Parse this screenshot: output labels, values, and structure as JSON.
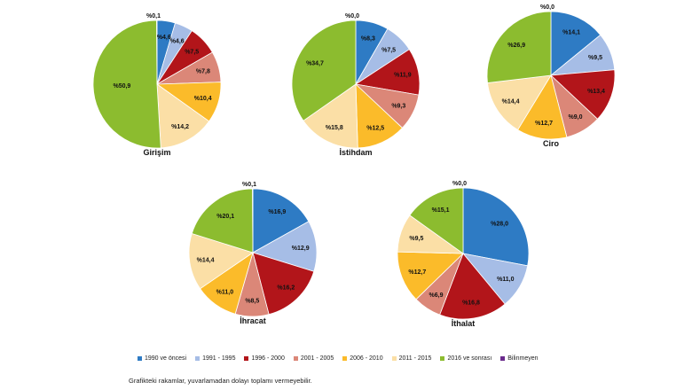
{
  "colors": {
    "1990 ve öncesi": "#2E7BC4",
    "1991 - 1995": "#A6BDE6",
    "1996 - 2000": "#B2151A",
    "2001 - 2005": "#DB8778",
    "2006 - 2010": "#FBBB2A",
    "2011 - 2015": "#FBDFA6",
    "2016 ve sonrası": "#8CBC2F",
    "Bilinmeyen": "#6A2A8C"
  },
  "chart_data": [
    {
      "type": "pie",
      "title": "Girişim",
      "categories": [
        "1990 ve öncesi",
        "1991 - 1995",
        "1996 - 2000",
        "2001 - 2005",
        "2006 - 2010",
        "2011 - 2015",
        "2016 ve sonrası",
        "Bilinmeyen"
      ],
      "values": [
        4.6,
        4.6,
        7.5,
        7.8,
        10.4,
        14.2,
        50.9,
        0.1
      ],
      "labels": [
        "%4,6",
        "%4,6",
        "%7,5",
        "%7,8",
        "%10,4",
        "%14,2",
        "%50,9",
        "%0,1"
      ]
    },
    {
      "type": "pie",
      "title": "İstihdam",
      "categories": [
        "1990 ve öncesi",
        "1991 - 1995",
        "1996 - 2000",
        "2001 - 2005",
        "2006 - 2010",
        "2011 - 2015",
        "2016 ve sonrası",
        "Bilinmeyen"
      ],
      "values": [
        8.3,
        7.5,
        11.9,
        9.3,
        12.5,
        15.8,
        34.7,
        0.0
      ],
      "labels": [
        "%8,3",
        "%7,5",
        "%11,9",
        "%9,3",
        "%12,5",
        "%15,8",
        "%34,7",
        "%0,0"
      ]
    },
    {
      "type": "pie",
      "title": "Ciro",
      "categories": [
        "1990 ve öncesi",
        "1991 - 1995",
        "1996 - 2000",
        "2001 - 2005",
        "2006 - 2010",
        "2011 - 2015",
        "2016 ve sonrası",
        "Bilinmeyen"
      ],
      "values": [
        14.1,
        9.5,
        13.4,
        9.0,
        12.7,
        14.4,
        26.9,
        0.0
      ],
      "labels": [
        "%14,1",
        "%9,5",
        "%13,4",
        "%9,0",
        "%12,7",
        "%14,4",
        "%26,9",
        "%0,0"
      ]
    },
    {
      "type": "pie",
      "title": "İhracat",
      "categories": [
        "1990 ve öncesi",
        "1991 - 1995",
        "1996 - 2000",
        "2001 - 2005",
        "2006 - 2010",
        "2011 - 2015",
        "2016 ve sonrası",
        "Bilinmeyen"
      ],
      "values": [
        16.9,
        12.9,
        16.2,
        8.5,
        11.0,
        14.4,
        20.1,
        0.1
      ],
      "labels": [
        "%16,9",
        "%12,9",
        "%16,2",
        "%8,5",
        "%11,0",
        "%14,4",
        "%20,1",
        "%0,1"
      ]
    },
    {
      "type": "pie",
      "title": "İthalat",
      "categories": [
        "1990 ve öncesi",
        "1991 - 1995",
        "1996 - 2000",
        "2001 - 2005",
        "2006 - 2010",
        "2011 - 2015",
        "2016 ve sonrası",
        "Bilinmeyen"
      ],
      "values": [
        28.0,
        11.0,
        16.8,
        6.9,
        12.7,
        9.5,
        15.1,
        0.0
      ],
      "labels": [
        "%28,0",
        "%11,0",
        "%16,8",
        "%6,9",
        "%12,7",
        "%9,5",
        "%15,1",
        "%0,0"
      ]
    }
  ],
  "legend": {
    "items": [
      {
        "label": "1990 ve öncesi",
        "color": "#2E7BC4"
      },
      {
        "label": "1991 - 1995",
        "color": "#A6BDE6"
      },
      {
        "label": "1996 - 2000",
        "color": "#B2151A"
      },
      {
        "label": "2001 - 2005",
        "color": "#DB8778"
      },
      {
        "label": "2006 - 2010",
        "color": "#FBBB2A"
      },
      {
        "label": "2011 - 2015",
        "color": "#FBDFA6"
      },
      {
        "label": "2016 ve sonrası",
        "color": "#8CBC2F"
      },
      {
        "label": "Bilinmeyen",
        "color": "#6A2A8C"
      }
    ]
  },
  "footnote": "Grafikteki rakamlar, yuvarlamadan dolayı toplamı vermeyebilir."
}
